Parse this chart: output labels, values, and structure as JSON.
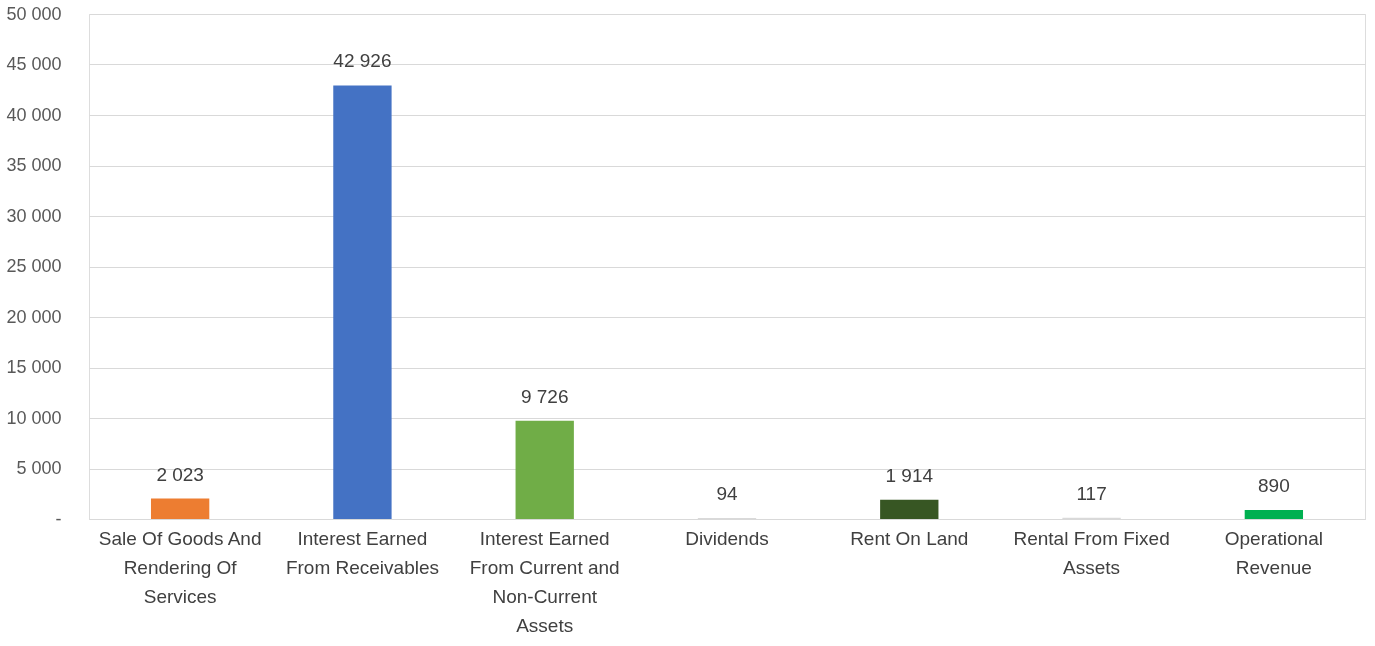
{
  "chart_data": {
    "type": "bar",
    "categories": [
      "Sale Of Goods And Rendering Of Services",
      "Interest Earned From Receivables",
      "Interest Earned From Current and Non-Current Assets",
      "Dividends",
      "Rent On Land",
      "Rental From Fixed Assets",
      "Operational Revenue"
    ],
    "values": [
      2023,
      42926,
      9726,
      94,
      1914,
      117,
      890
    ],
    "value_labels": [
      "2 023",
      "42 926",
      "9 726",
      "94",
      "1 914",
      "117",
      "890"
    ],
    "colors": [
      "#ed7d31",
      "#4472c4",
      "#70ad47",
      "#d9d9d9",
      "#375623",
      "#d9d9d9",
      "#00b050"
    ],
    "ylim": [
      0,
      50000
    ],
    "yticks": [
      {
        "value": 0,
        "label": "-"
      },
      {
        "value": 5000,
        "label": "5 000"
      },
      {
        "value": 10000,
        "label": "10 000"
      },
      {
        "value": 15000,
        "label": "15 000"
      },
      {
        "value": 20000,
        "label": "20 000"
      },
      {
        "value": 25000,
        "label": "25 000"
      },
      {
        "value": 30000,
        "label": "30 000"
      },
      {
        "value": 35000,
        "label": "35 000"
      },
      {
        "value": 40000,
        "label": "40 000"
      },
      {
        "value": 45000,
        "label": "45 000"
      },
      {
        "value": 50000,
        "label": "50 000"
      }
    ],
    "grid": "y"
  }
}
